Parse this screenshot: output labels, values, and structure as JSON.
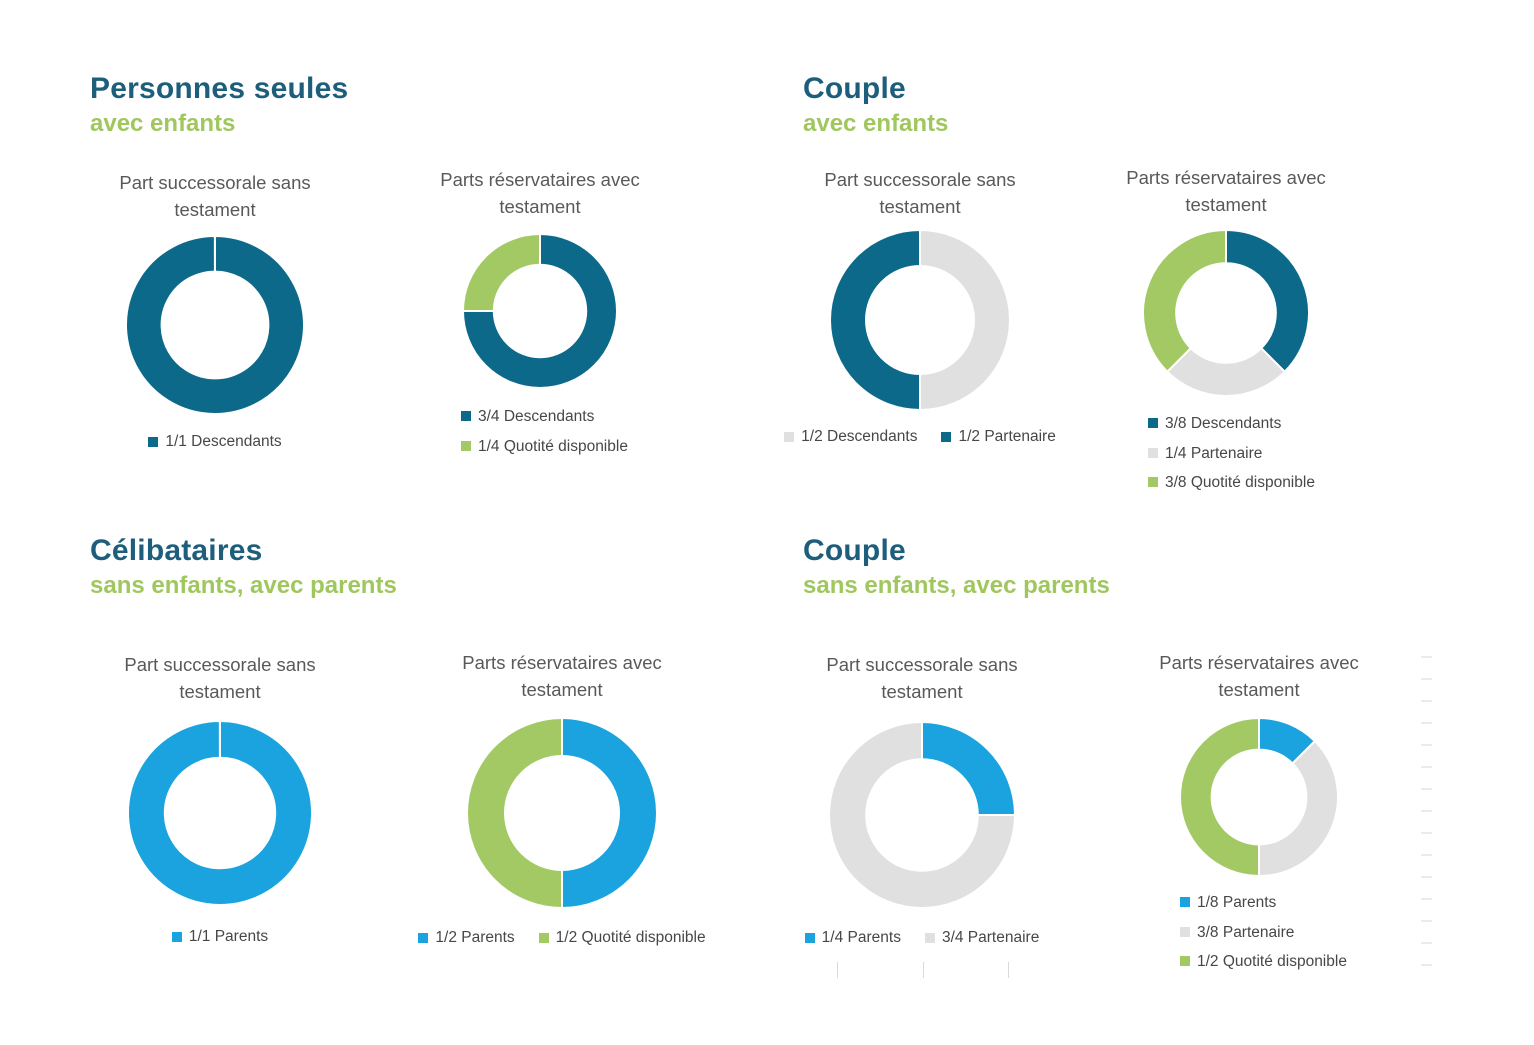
{
  "palette": {
    "teal": "#0c6989",
    "green": "#a3c965",
    "blue": "#1aa3de",
    "gray": "#e0e0e0",
    "heading_teal": "#1d5e7c",
    "heading_green": "#a0c75e",
    "chart_title_gray": "#595959",
    "legend_text": "#474747"
  },
  "sections": [
    {
      "title": "Personnes seules",
      "subtitle": "avec enfants"
    },
    {
      "title": "Couple",
      "subtitle": "avec enfants"
    },
    {
      "title": "Célibataires",
      "subtitle": "sans enfants, avec parents"
    },
    {
      "title": "Couple",
      "subtitle": "sans enfants, avec parents"
    }
  ],
  "chart_data": [
    {
      "type": "donut",
      "section": "Personnes seules — avec enfants",
      "title": "Part successorale sans testament",
      "title_lines": [
        "Part successorale sans",
        "testament"
      ],
      "labels": [
        "Descendants"
      ],
      "fractions": [
        "1/1"
      ],
      "values": [
        1
      ],
      "colors": [
        "teal"
      ],
      "legend_position": "bottom-row"
    },
    {
      "type": "donut",
      "section": "Personnes seules — avec enfants",
      "title": "Parts réservataires avec testament",
      "title_lines": [
        "Parts réservataires avec",
        "testament"
      ],
      "labels": [
        "Descendants",
        "Quotité disponible"
      ],
      "fractions": [
        "3/4",
        "1/4"
      ],
      "values": [
        0.75,
        0.25
      ],
      "colors": [
        "teal",
        "green"
      ],
      "legend_position": "bottom-column"
    },
    {
      "type": "donut",
      "section": "Couple — avec enfants",
      "title": "Part successorale sans testament",
      "title_lines": [
        "Part successorale sans",
        "testament"
      ],
      "labels": [
        "Descendants",
        "Partenaire"
      ],
      "fractions": [
        "1/2",
        "1/2"
      ],
      "values": [
        0.5,
        0.5
      ],
      "colors": [
        "gray",
        "teal"
      ],
      "legend_position": "bottom-row"
    },
    {
      "type": "donut",
      "section": "Couple — avec enfants",
      "title": "Parts réservataires avec testament",
      "title_lines": [
        "Parts réservataires avec",
        "testament"
      ],
      "labels": [
        "Descendants",
        "Partenaire",
        "Quotité disponible"
      ],
      "fractions": [
        "3/8",
        "1/4",
        "3/8"
      ],
      "values": [
        0.375,
        0.25,
        0.375
      ],
      "colors": [
        "teal",
        "gray",
        "green"
      ],
      "legend_position": "bottom-column"
    },
    {
      "type": "donut",
      "section": "Célibataires — sans enfants, avec parents",
      "title": "Part successorale sans testament",
      "title_lines": [
        "Part successorale sans",
        "testament"
      ],
      "labels": [
        "Parents"
      ],
      "fractions": [
        "1/1"
      ],
      "values": [
        1
      ],
      "colors": [
        "blue"
      ],
      "legend_position": "bottom-row"
    },
    {
      "type": "donut",
      "section": "Célibataires — sans enfants, avec parents",
      "title": "Parts réservataires avec testament",
      "title_lines": [
        "Parts réservataires avec",
        "testament"
      ],
      "labels": [
        "Parents",
        "Quotité disponible"
      ],
      "fractions": [
        "1/2",
        "1/2"
      ],
      "values": [
        0.5,
        0.5
      ],
      "colors": [
        "blue",
        "green"
      ],
      "legend_position": "bottom-row"
    },
    {
      "type": "donut",
      "section": "Couple — sans enfants, avec parents",
      "title": "Part successorale sans testament",
      "title_lines": [
        "Part successorale sans",
        "testament"
      ],
      "labels": [
        "Parents",
        "Partenaire"
      ],
      "fractions": [
        "1/4",
        "3/4"
      ],
      "values": [
        0.25,
        0.75
      ],
      "colors": [
        "blue",
        "gray"
      ],
      "legend_position": "bottom-row"
    },
    {
      "type": "donut",
      "section": "Couple — sans enfants, avec parents",
      "title": "Parts réservataires avec testament",
      "title_lines": [
        "Parts réservataires avec",
        "testament"
      ],
      "labels": [
        "Parents",
        "Partenaire",
        "Quotité disponible"
      ],
      "fractions": [
        "1/8",
        "3/8",
        "1/2"
      ],
      "values": [
        0.125,
        0.375,
        0.5
      ],
      "colors": [
        "blue",
        "gray",
        "green"
      ],
      "legend_position": "bottom-column"
    }
  ]
}
